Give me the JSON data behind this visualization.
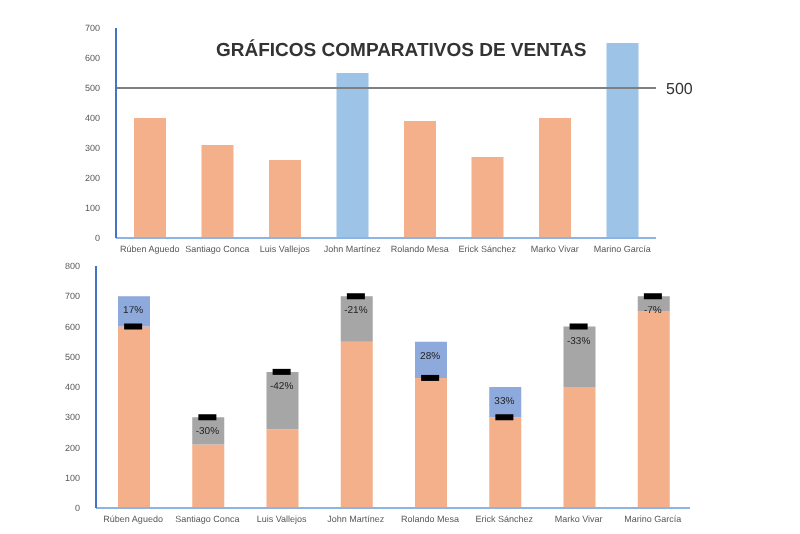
{
  "chart_data": [
    {
      "type": "bar",
      "title": "GRÁFICOS COMPARATIVOS DE VENTAS",
      "categories": [
        "Rúben Aguedo",
        "Santiago Conca",
        "Luis Vallejos",
        "John Martínez",
        "Rolando Mesa",
        "Erick Sánchez",
        "Marko Vivar",
        "Marino García"
      ],
      "values": [
        400,
        310,
        260,
        550,
        390,
        270,
        400,
        650
      ],
      "colors": [
        "#f4b08a",
        "#f4b08a",
        "#f4b08a",
        "#9dc3e6",
        "#f4b08a",
        "#f4b08a",
        "#f4b08a",
        "#9dc3e6"
      ],
      "ylim": [
        0,
        700
      ],
      "yticks": [
        0,
        100,
        200,
        300,
        400,
        500,
        600,
        700
      ],
      "ref_lines": [
        {
          "axis": "y",
          "value": 500,
          "label": "500",
          "color": "#7f7f7f"
        }
      ]
    },
    {
      "type": "bar",
      "stacked": true,
      "categories": [
        "Rúben Aguedo",
        "Santiago Conca",
        "Luis Vallejos",
        "John Martínez",
        "Rolando Mesa",
        "Erick Sánchez",
        "Marko Vivar",
        "Marino García"
      ],
      "series": [
        {
          "color": "#f4b08a",
          "values": [
            600,
            210,
            260,
            550,
            430,
            300,
            400,
            650
          ]
        },
        {
          "color": "#8ea9db",
          "values": [
            100,
            null,
            null,
            null,
            120,
            100,
            null,
            null
          ]
        },
        {
          "color": "#a6a6a6",
          "values": [
            null,
            90,
            190,
            150,
            null,
            null,
            200,
            50
          ]
        },
        {
          "type": "scatter",
          "color": "#000000",
          "x": [
            "Rúben Aguedo",
            "Santiago Conca",
            "Luis Vallejos",
            "John Martínez",
            "Rolando Mesa",
            "Erick Sánchez",
            "Marko Vivar",
            "Marino García"
          ],
          "values": [
            600,
            300,
            450,
            700,
            430,
            300,
            600,
            700
          ]
        }
      ],
      "annotations": [
        {
          "text": "17%",
          "x": "Rúben Aguedo",
          "y": 700
        },
        {
          "text": "-30%",
          "x": "Santiago Conca",
          "y": 300
        },
        {
          "text": "-42%",
          "x": "Luis Vallejos",
          "y": 450
        },
        {
          "text": "-21%",
          "x": "John Martínez",
          "y": 700
        },
        {
          "text": "28%",
          "x": "Rolando Mesa",
          "y": 550
        },
        {
          "text": "33%",
          "x": "Erick Sánchez",
          "y": 400
        },
        {
          "text": "-33%",
          "x": "Marko Vivar",
          "y": 600
        },
        {
          "text": "-7%",
          "x": "Marino García",
          "y": 700
        }
      ],
      "ylim": [
        0,
        800
      ],
      "yticks": [
        0,
        100,
        200,
        300,
        400,
        500,
        600,
        700,
        800
      ]
    }
  ]
}
